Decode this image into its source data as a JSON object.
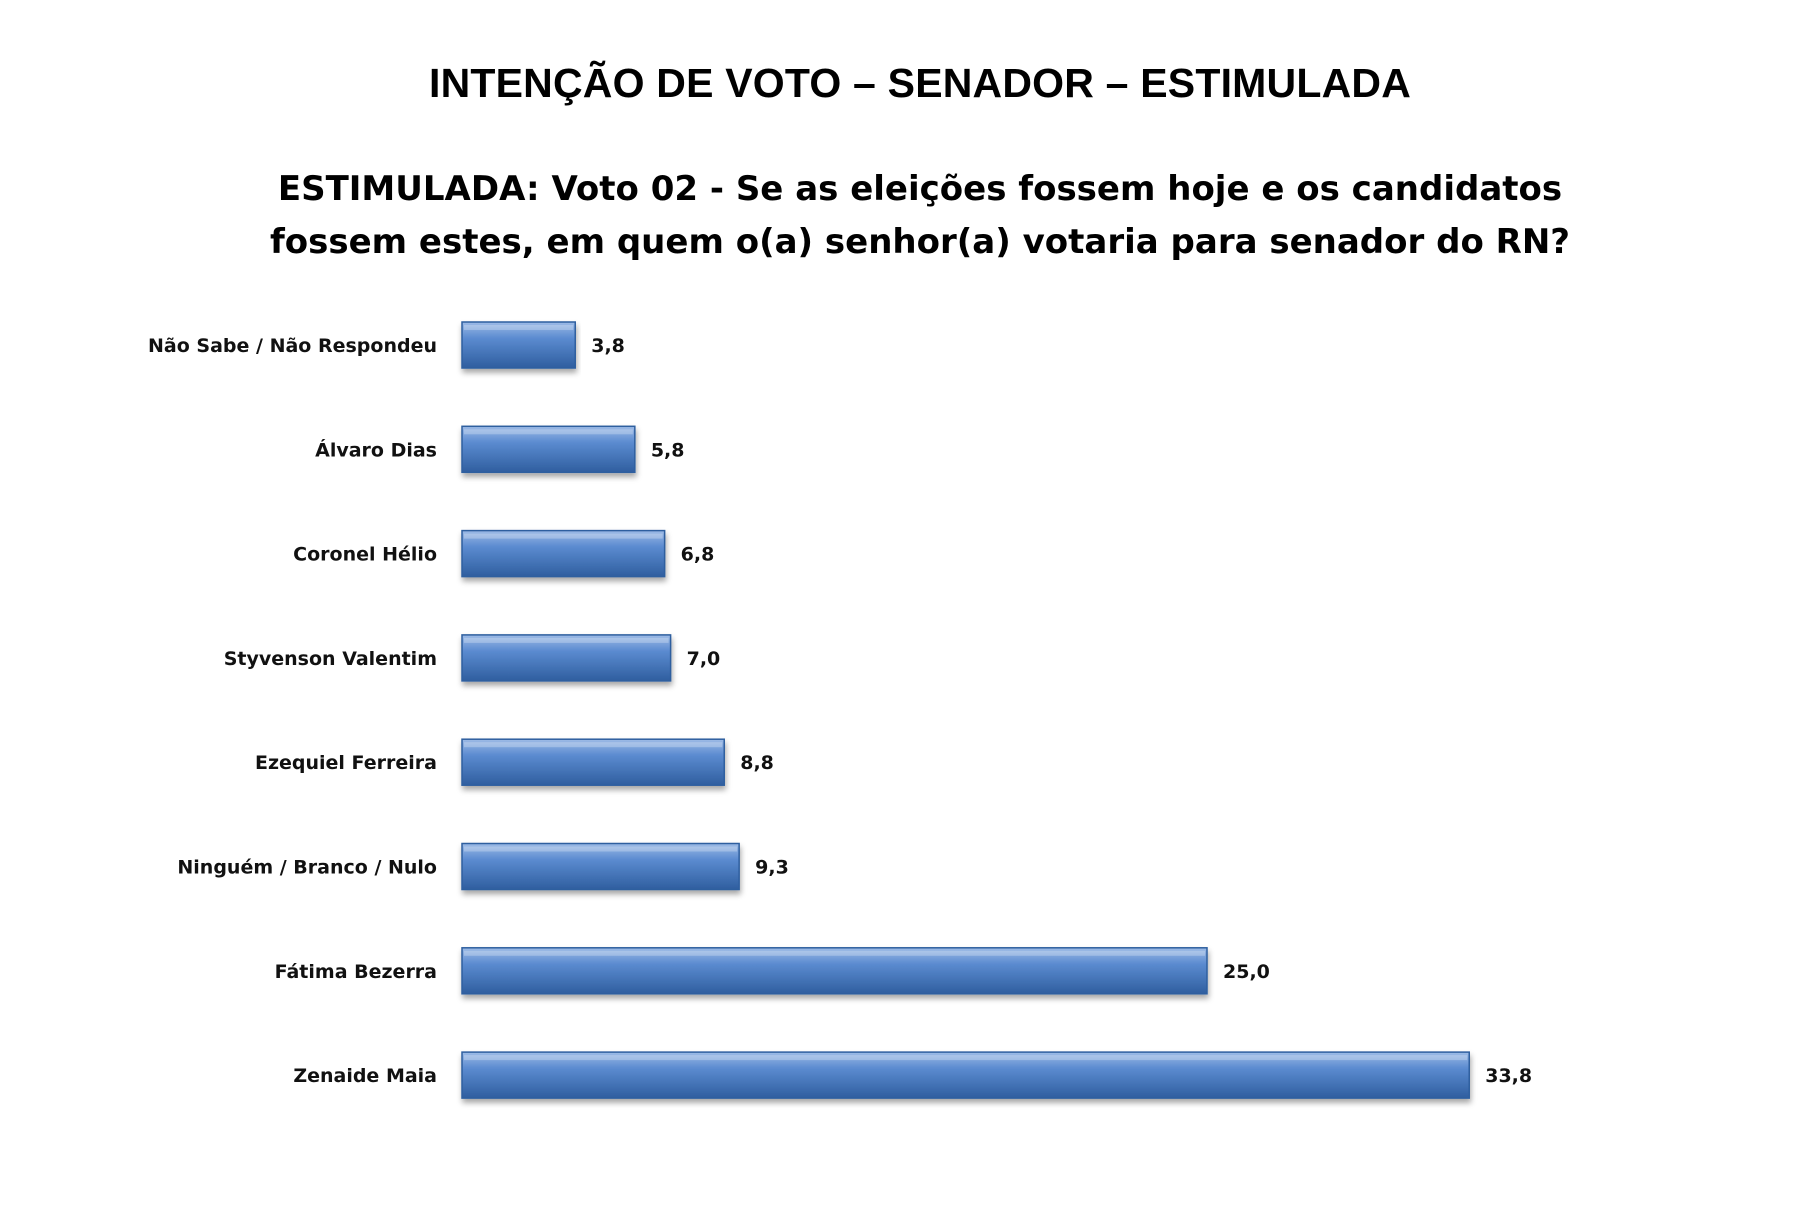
{
  "title": "INTENÇÃO DE VOTO – SENADOR – ESTIMULADA",
  "subtitle_line1": "ESTIMULADA: Voto 02 - Se as eleições fossem hoje e os candidatos",
  "subtitle_line2": "fossem estes, em quem o(a) senhor(a) votaria para senador do RN?",
  "colors": {
    "bar_light": "#7fa6dc",
    "bar_mid": "#4f7fc6",
    "bar_dark": "#2f5e9f"
  },
  "chart_data": {
    "type": "bar",
    "orientation": "horizontal",
    "categories": [
      "Não Sabe / Não Respondeu",
      "Álvaro Dias",
      "Coronel Hélio",
      "Styvenson Valentim",
      "Ezequiel Ferreira",
      "Ninguém / Branco / Nulo",
      "Fátima Bezerra",
      "Zenaide Maia"
    ],
    "values": [
      3.8,
      5.8,
      6.8,
      7.0,
      8.8,
      9.3,
      25.0,
      33.8
    ],
    "value_labels": [
      "3,8",
      "5,8",
      "6,8",
      "7,0",
      "8,8",
      "9,3",
      "25,0",
      "33,8"
    ],
    "title": "INTENÇÃO DE VOTO – SENADOR – ESTIMULADA",
    "xlabel": "",
    "ylabel": "",
    "grid": false,
    "legend": "none"
  }
}
